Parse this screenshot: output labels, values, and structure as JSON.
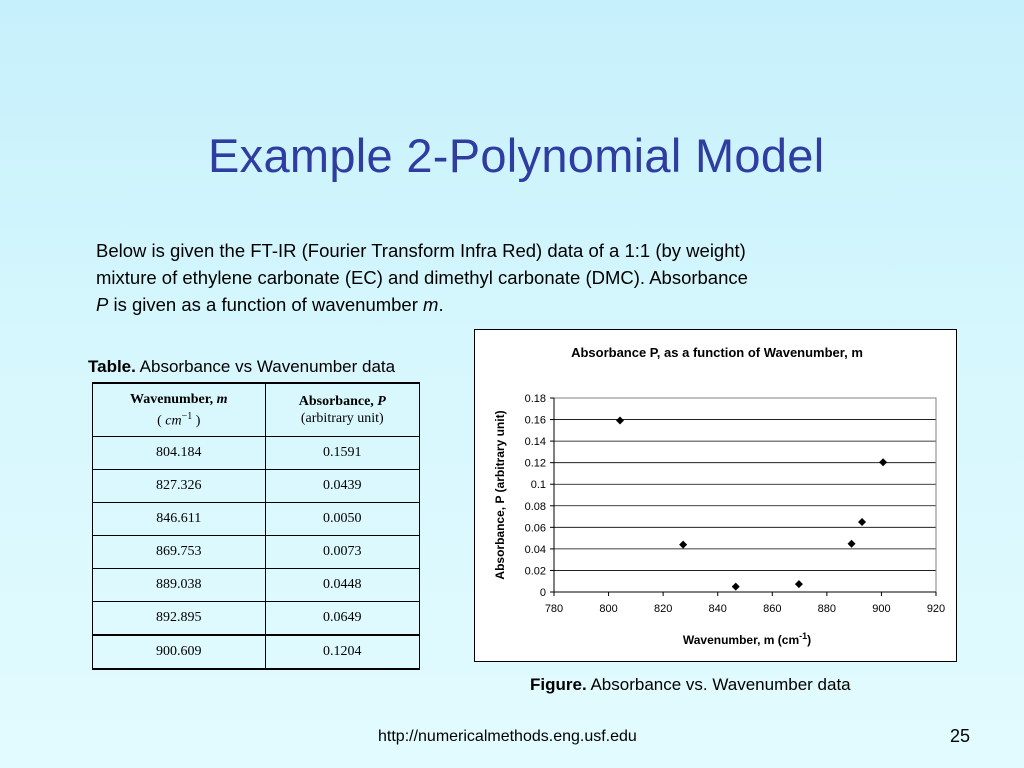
{
  "slide": {
    "title": "Example 2-Polynomial Model",
    "intro_line1": "Below is given the FT-IR (Fourier Transform Infra Red) data of a 1:1 (by weight)",
    "intro_line2": "mixture of ethylene carbonate (EC) and dimethyl carbonate (DMC). Absorbance",
    "intro_var_p": "P",
    "intro_line3_mid": " is given as a function of wavenumber ",
    "intro_var_m": "m",
    "intro_line3_end": ".",
    "url": "http://numericalmethods.eng.usf.edu",
    "page_number": "25"
  },
  "table": {
    "caption_bold": "Table.",
    "caption_text": " Absorbance vs Wavenumber data",
    "col1_header": "Wavenumber, ",
    "col1_var": "m",
    "col1_unit_open": "( ",
    "col1_unit_base": "cm",
    "col1_unit_exp": "−1",
    "col1_unit_close": " )",
    "col2_header": "Absorbance, ",
    "col2_var": "P",
    "col2_unit": "(arbitrary unit)",
    "rows": [
      [
        "804.184",
        "0.1591"
      ],
      [
        "827.326",
        "0.0439"
      ],
      [
        "846.611",
        "0.0050"
      ],
      [
        "869.753",
        "0.0073"
      ],
      [
        "889.038",
        "0.0448"
      ],
      [
        "892.895",
        "0.0649"
      ],
      [
        "900.609",
        "0.1204"
      ]
    ]
  },
  "figure": {
    "caption_bold": "Figure.",
    "caption_text": " Absorbance vs. Wavenumber data"
  },
  "chart_data": {
    "type": "scatter",
    "title": "Absorbance P, as a function of Wavenumber, m",
    "xlabel": "Wavenumber, m (cm",
    "xlabel_sup": "-1",
    "xlabel_end": ")",
    "ylabel": "Absorbance, P (arbitrary unit)",
    "xlim": [
      780,
      920
    ],
    "ylim": [
      0,
      0.18
    ],
    "xticks": [
      "780",
      "800",
      "820",
      "840",
      "860",
      "880",
      "900",
      "920"
    ],
    "yticks": [
      "0",
      "0.02",
      "0.04",
      "0.06",
      "0.08",
      "0.1",
      "0.12",
      "0.14",
      "0.16",
      "0.18"
    ],
    "grid": "horizontal",
    "marker": "diamond",
    "marker_color": "#000000",
    "x": [
      804.184,
      827.326,
      846.611,
      869.753,
      889.038,
      892.895,
      900.609
    ],
    "y": [
      0.1591,
      0.0439,
      0.005,
      0.0073,
      0.0448,
      0.0649,
      0.1204
    ]
  },
  "colors": {
    "title": "#2f3ca0",
    "background_top": "#c6f0fc",
    "background_bottom": "#e2fbfe"
  }
}
